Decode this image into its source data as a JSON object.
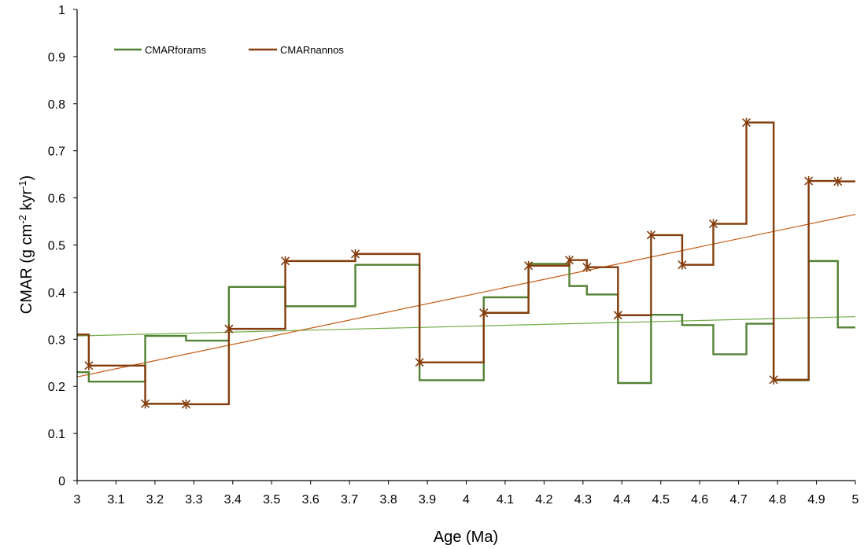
{
  "chart_data": {
    "type": "line",
    "xlabel": "Age (Ma)",
    "ylabel": {
      "base": "CMAR (g cm",
      "sup1": "-2",
      "mid": " kyr",
      "sup2": "-1",
      "end": ")"
    },
    "xlim": [
      3,
      5
    ],
    "ylim": [
      0,
      1
    ],
    "xticks": [
      "3",
      "3.1",
      "3.2",
      "3.3",
      "3.4",
      "3.5",
      "3.6",
      "3.7",
      "3.8",
      "3.9",
      "4",
      "4.1",
      "4.2",
      "4.3",
      "4.4",
      "4.5",
      "4.6",
      "4.7",
      "4.8",
      "4.9",
      "5"
    ],
    "yticks": [
      "0",
      "0.1",
      "0.2",
      "0.3",
      "0.4",
      "0.5",
      "0.6",
      "0.7",
      "0.8",
      "0.9",
      "1"
    ],
    "grid": false,
    "legend_position": "top-left",
    "series": [
      {
        "name": "CMARforams",
        "color": "#548235",
        "style": "step",
        "markers": false,
        "points": [
          [
            3.0,
            0.23
          ],
          [
            3.03,
            0.21
          ],
          [
            3.175,
            0.307
          ],
          [
            3.28,
            0.297
          ],
          [
            3.39,
            0.411
          ],
          [
            3.535,
            0.37
          ],
          [
            3.715,
            0.458
          ],
          [
            3.88,
            0.213
          ],
          [
            4.045,
            0.389
          ],
          [
            4.16,
            0.46
          ],
          [
            4.265,
            0.413
          ],
          [
            4.31,
            0.395
          ],
          [
            4.39,
            0.207
          ],
          [
            4.475,
            0.352
          ],
          [
            4.555,
            0.33
          ],
          [
            4.635,
            0.268
          ],
          [
            4.72,
            0.333
          ],
          [
            4.79,
            0.213
          ],
          [
            4.88,
            0.466
          ],
          [
            4.955,
            0.325
          ],
          [
            5.0,
            0.325
          ]
        ]
      },
      {
        "name": "CMARnannos",
        "color": "#843C0C",
        "style": "step",
        "markers": true,
        "points": [
          [
            3.0,
            0.31
          ],
          [
            3.03,
            0.244
          ],
          [
            3.175,
            0.163
          ],
          [
            3.28,
            0.162
          ],
          [
            3.39,
            0.322
          ],
          [
            3.535,
            0.466
          ],
          [
            3.715,
            0.481
          ],
          [
            3.88,
            0.251
          ],
          [
            4.045,
            0.356
          ],
          [
            4.16,
            0.456
          ],
          [
            4.265,
            0.468
          ],
          [
            4.31,
            0.453
          ],
          [
            4.39,
            0.351
          ],
          [
            4.475,
            0.521
          ],
          [
            4.555,
            0.458
          ],
          [
            4.635,
            0.545
          ],
          [
            4.72,
            0.76
          ],
          [
            4.79,
            0.214
          ],
          [
            4.88,
            0.636
          ],
          [
            4.955,
            0.635
          ],
          [
            5.0,
            0.635
          ]
        ]
      }
    ],
    "trendlines": [
      {
        "series": "CMARforams",
        "color": "#70AD47",
        "x": [
          3.0,
          5.0
        ],
        "y": [
          0.307,
          0.348
        ]
      },
      {
        "series": "CMARnannos",
        "color": "#C55A11",
        "x": [
          3.0,
          5.0
        ],
        "y": [
          0.22,
          0.565
        ]
      }
    ]
  }
}
